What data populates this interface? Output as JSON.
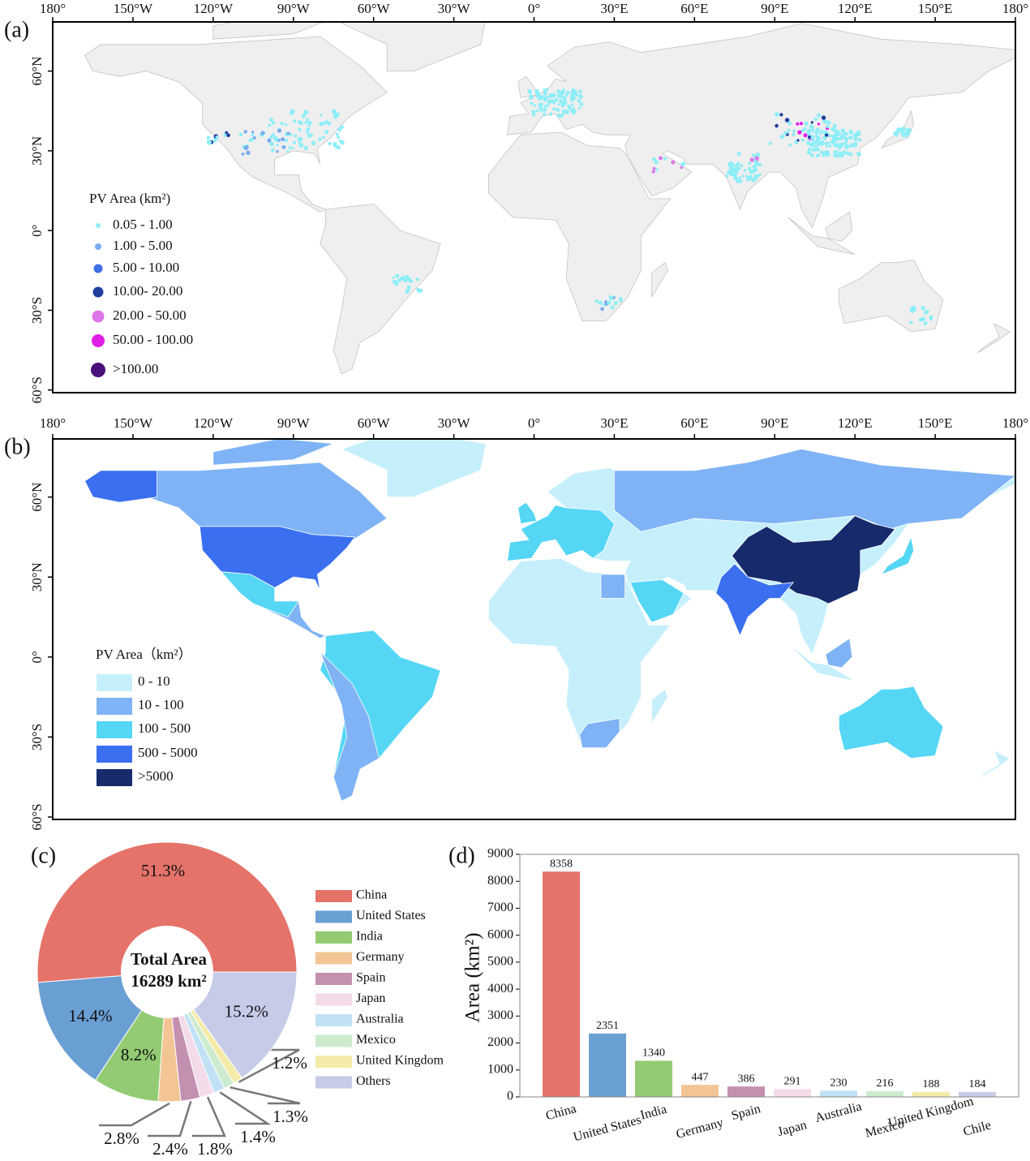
{
  "chart_data": [
    {
      "type": "bubble_map",
      "panel_label": "(a)",
      "xlim": [
        -180,
        180
      ],
      "ylim": [
        -61,
        78.5
      ],
      "xticks": [
        {
          "value": -180,
          "label": "180°"
        },
        {
          "value": -150,
          "label": "150°W"
        },
        {
          "value": -120,
          "label": "120°W"
        },
        {
          "value": -90,
          "label": "90°W"
        },
        {
          "value": -60,
          "label": "60°W"
        },
        {
          "value": -30,
          "label": "30°W"
        },
        {
          "value": 0,
          "label": "0°"
        },
        {
          "value": 30,
          "label": "30°E"
        },
        {
          "value": 60,
          "label": "60°E"
        },
        {
          "value": 90,
          "label": "90°E"
        },
        {
          "value": 120,
          "label": "120°E"
        },
        {
          "value": 150,
          "label": "150°E"
        },
        {
          "value": 180,
          "label": "180°"
        }
      ],
      "yticks": [
        {
          "value": 60,
          "label": "60°N"
        },
        {
          "value": 30,
          "label": "30°N"
        },
        {
          "value": 0,
          "label": "0°"
        },
        {
          "value": -30,
          "label": "30°S"
        },
        {
          "value": -60,
          "label": "60°S"
        }
      ],
      "legend": {
        "title": "PV Area (km²)",
        "items": [
          {
            "label": "0.05 - 1.00",
            "color": "#8ceef7"
          },
          {
            "label": "1.00 - 5.00",
            "color": "#7aaaf0"
          },
          {
            "label": "5.00 - 10.00",
            "color": "#3f6fe6"
          },
          {
            "label": "10.00- 20.00",
            "color": "#1f3f9e"
          },
          {
            "label": "20.00 - 50.00",
            "color": "#dd77e8"
          },
          {
            "label": "50.00 - 100.00",
            "color": "#e21fe8"
          },
          {
            "label": ">100.00",
            "color": "#4a0f7a"
          }
        ]
      }
    },
    {
      "type": "choropleth_map",
      "panel_label": "(b)",
      "xlim": [
        -180,
        180
      ],
      "ylim": [
        -60.9,
        81.8
      ],
      "xticks": [
        {
          "value": -180,
          "label": "180°"
        },
        {
          "value": -150,
          "label": "150°W"
        },
        {
          "value": -120,
          "label": "120°W"
        },
        {
          "value": -90,
          "label": "90°W"
        },
        {
          "value": -60,
          "label": "60°W"
        },
        {
          "value": -30,
          "label": "30°W"
        },
        {
          "value": 0,
          "label": "0°"
        },
        {
          "value": 30,
          "label": "30°E"
        },
        {
          "value": 60,
          "label": "60°E"
        },
        {
          "value": 90,
          "label": "90°E"
        },
        {
          "value": 120,
          "label": "120°E"
        },
        {
          "value": 150,
          "label": "150°E"
        },
        {
          "value": 180,
          "label": "180°"
        }
      ],
      "yticks": [
        {
          "value": 60,
          "label": "60°N"
        },
        {
          "value": 30,
          "label": "30°N"
        },
        {
          "value": 0,
          "label": "0°"
        },
        {
          "value": -30,
          "label": "30°S"
        },
        {
          "value": -60,
          "label": "60°S"
        }
      ],
      "legend": {
        "title": "PV Area（km²）",
        "items": [
          {
            "label": "0 - 10",
            "color": "#c6effc"
          },
          {
            "label": "10 - 100",
            "color": "#7fb3f5"
          },
          {
            "label": "100 - 500",
            "color": "#55d6f5"
          },
          {
            "label": "500 - 5000",
            "color": "#3a6ff0"
          },
          {
            "label": ">5000",
            "color": "#172a6b"
          }
        ]
      }
    },
    {
      "type": "donut",
      "panel_label": "(c)",
      "center_text": [
        "Total Area",
        "16289 km²"
      ],
      "categories": [
        "China",
        "United States",
        "India",
        "Germany",
        "Spain",
        "Japan",
        "Australia",
        "Mexico",
        "United Kingdom",
        "Others"
      ],
      "values": [
        51.3,
        14.4,
        8.2,
        2.8,
        2.4,
        1.8,
        1.4,
        1.3,
        1.2,
        15.2
      ],
      "value_labels": [
        "51.3%",
        "14.4%",
        "8.2%",
        "2.8%",
        "2.4%",
        "1.8%",
        "1.4%",
        "1.3%",
        "1.2%",
        "15.2%"
      ],
      "colors": [
        "#e5736a",
        "#6a9fd4",
        "#93cb73",
        "#f3c595",
        "#c390b0",
        "#f4dbea",
        "#c1e2f4",
        "#cdebcf",
        "#f4eba9",
        "#c6cbe8"
      ]
    },
    {
      "type": "bar",
      "panel_label": "(d)",
      "ylabel": "Area (km²)",
      "categories": [
        "China",
        "United States",
        "India",
        "Germany",
        "Spain",
        "Japan",
        "Australia",
        "Mexico",
        "United Kingdom",
        "Chile"
      ],
      "values": [
        8358,
        2351,
        1340,
        447,
        386,
        291,
        230,
        216,
        188,
        184
      ],
      "colors": [
        "#e5736a",
        "#6a9fd4",
        "#93cb73",
        "#f3c595",
        "#c390b0",
        "#f4dbea",
        "#c1e2f4",
        "#cdebcf",
        "#f4eba9",
        "#c6cbe8"
      ],
      "ylim": [
        0,
        9000
      ],
      "yticks": [
        0,
        1000,
        2000,
        3000,
        4000,
        5000,
        6000,
        7000,
        8000,
        9000
      ]
    }
  ]
}
